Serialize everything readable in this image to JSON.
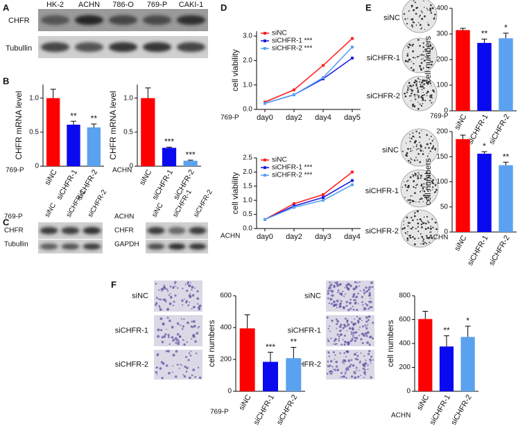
{
  "panel_labels": [
    "A",
    "B",
    "C",
    "D",
    "E",
    "F"
  ],
  "blot_a": {
    "lanes": [
      "HK-2",
      "ACHN",
      "786-O",
      "769-P",
      "CAKI-1"
    ],
    "rows": [
      "CHFR",
      "Tubullin"
    ]
  },
  "blot_c": [
    {
      "cell": "769-P",
      "lanes": [
        "siNC",
        "siCHFR-1",
        "siCHFR-2"
      ],
      "rows": [
        "CHFR",
        "Tubullin"
      ]
    },
    {
      "cell": "ACHN",
      "lanes": [
        "siNC",
        "siCHFR-1",
        "siCHFR-2"
      ],
      "rows": [
        "CHFR",
        "GAPDH"
      ]
    }
  ],
  "colony_images": [
    {
      "labels": [
        "siNC",
        "siCHFR-1",
        "siCHFR-2"
      ]
    },
    {
      "labels": [
        "siNC",
        "siCHFR-1",
        "siCHFR-2"
      ]
    }
  ],
  "transwell_images": [
    {
      "labels": [
        "siNC",
        "siCHFR-1",
        "siCHFR-2"
      ]
    },
    {
      "labels": [
        "siNC",
        "siCHFR-1",
        "siCHFR-2"
      ]
    }
  ],
  "chart_data": [
    {
      "type": "bar",
      "ylabel": "CHFR mRNA level",
      "cell_label": "769-P",
      "categories": [
        "siNC",
        "siCHFR-1",
        "siCHFR-2"
      ],
      "values": [
        1.0,
        0.61,
        0.57
      ],
      "errors": [
        0.13,
        0.05,
        0.05
      ],
      "colors": [
        "#ff0000",
        "#0a0af0",
        "#5aa2ef"
      ],
      "significance": [
        null,
        "**",
        "**"
      ],
      "ylim": [
        0,
        1.2
      ],
      "yticks": [
        0,
        0.5,
        {
          "value": 1,
          "label": "1.0"
        }
      ]
    },
    {
      "type": "bar",
      "ylabel": "CHFR mRNA level",
      "cell_label": "ACHN",
      "categories": [
        "siNC",
        "siCHFR-1",
        "siCHFR-2"
      ],
      "values": [
        1.0,
        0.27,
        0.08
      ],
      "errors": [
        0.15,
        0.01,
        0.01
      ],
      "colors": [
        "#ff0000",
        "#0a0af0",
        "#5aa2ef"
      ],
      "significance": [
        null,
        "***",
        "***"
      ],
      "ylim": [
        0,
        1.2
      ],
      "yticks": [
        0,
        0.5,
        {
          "value": 1,
          "label": "1.0"
        }
      ]
    },
    {
      "type": "line",
      "ylabel": "cell viability",
      "cell_label": "769-P",
      "categories": [
        "day0",
        "day2",
        "day4",
        "day5"
      ],
      "series": [
        {
          "name": "siNC",
          "color": "#ff2020",
          "values": [
            0.3,
            0.8,
            1.8,
            2.9
          ]
        },
        {
          "name": "siCHFR-1 ***",
          "color": "#1a1ae6",
          "values": [
            0.25,
            0.6,
            1.25,
            2.1
          ]
        },
        {
          "name": "siCHFR-2 ***",
          "color": "#5aa2ef",
          "values": [
            0.25,
            0.6,
            1.3,
            2.55
          ]
        }
      ],
      "ylim": [
        0,
        3.2
      ],
      "yticks": [
        {
          "value": 0,
          "label": "0.0"
        },
        {
          "value": 1,
          "label": "1.0"
        },
        {
          "value": 2,
          "label": "2.0"
        },
        {
          "value": 3,
          "label": "3.0"
        }
      ]
    },
    {
      "type": "line",
      "ylabel": "cell viability",
      "cell_label": "ACHN",
      "categories": [
        "day0",
        "day2",
        "day3",
        "day4"
      ],
      "series": [
        {
          "name": "siNC",
          "color": "#ff2020",
          "values": [
            0.32,
            0.88,
            1.2,
            2.0
          ]
        },
        {
          "name": "siCHFR-1 ***",
          "color": "#1a1ae6",
          "values": [
            0.32,
            0.8,
            1.1,
            1.7
          ]
        },
        {
          "name": "siCHFR-2 ***",
          "color": "#5aa2ef",
          "values": [
            0.32,
            0.75,
            1.0,
            1.55
          ]
        }
      ],
      "ylim": [
        0,
        2.5
      ],
      "yticks": [
        {
          "value": 0,
          "label": "0.0"
        },
        0.5,
        {
          "value": 1,
          "label": "1.0"
        },
        1.5,
        {
          "value": 2,
          "label": "2.0"
        },
        2.5
      ]
    },
    {
      "type": "bar",
      "ylabel": "cell numbers",
      "cell_label": "769-P",
      "categories": [
        "siNC",
        "siCHFR-1",
        "siCHFR-2"
      ],
      "values": [
        315,
        265,
        283
      ],
      "errors": [
        7,
        15,
        20
      ],
      "colors": [
        "#ff0000",
        "#0a0af0",
        "#5aa2ef"
      ],
      "significance": [
        null,
        "**",
        "*"
      ],
      "ylim": [
        0,
        400
      ],
      "yticks": [
        0,
        100,
        200,
        300,
        400
      ]
    },
    {
      "type": "bar",
      "ylabel": "cell numbers",
      "cell_label": "ACHN",
      "categories": [
        "siNC",
        "siCHFR-1",
        "siCHFR-2"
      ],
      "values": [
        185,
        156,
        133
      ],
      "errors": [
        8,
        4,
        6
      ],
      "colors": [
        "#ff0000",
        "#0a0af0",
        "#5aa2ef"
      ],
      "significance": [
        null,
        "*",
        "**"
      ],
      "ylim": [
        0,
        200
      ],
      "yticks": [
        0,
        50,
        100,
        150,
        200
      ]
    },
    {
      "type": "bar",
      "ylabel": "cell numbers",
      "cell_label": "769-P",
      "categories": [
        "siNC",
        "siCHFR-1",
        "siCHFR-2"
      ],
      "values": [
        395,
        185,
        208
      ],
      "errors": [
        85,
        60,
        68
      ],
      "colors": [
        "#ff0000",
        "#0a0af0",
        "#5aa2ef"
      ],
      "significance": [
        null,
        "***",
        "**"
      ],
      "ylim": [
        0,
        600
      ],
      "yticks": [
        0,
        200,
        400,
        600
      ]
    },
    {
      "type": "bar",
      "ylabel": "cell numbers",
      "cell_label": "ACHN",
      "categories": [
        "siNC",
        "siCHFR-1",
        "siCHFR-2"
      ],
      "values": [
        605,
        375,
        455
      ],
      "errors": [
        65,
        90,
        90
      ],
      "colors": [
        "#ff0000",
        "#0a0af0",
        "#5aa2ef"
      ],
      "significance": [
        null,
        "**",
        "*"
      ],
      "ylim": [
        0,
        800
      ],
      "yticks": [
        0,
        200,
        400,
        600,
        800
      ]
    }
  ]
}
